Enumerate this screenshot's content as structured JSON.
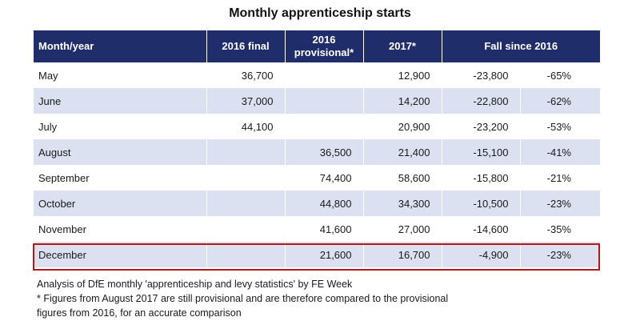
{
  "title": "Monthly apprenticeship starts",
  "headers": {
    "month": "Month/year",
    "final2016": "2016 final",
    "prov2016_line1": "2016",
    "prov2016_line2": "provisional*",
    "y2017": "2017*",
    "fall": "Fall since 2016"
  },
  "rows": [
    {
      "month": "May",
      "final2016": "36,700",
      "prov2016": "",
      "y2017": "12,900",
      "fall": "-23,800",
      "pct": "-65%"
    },
    {
      "month": "June",
      "final2016": "37,000",
      "prov2016": "",
      "y2017": "14,200",
      "fall": "-22,800",
      "pct": "-62%"
    },
    {
      "month": "July",
      "final2016": "44,100",
      "prov2016": "",
      "y2017": "20,900",
      "fall": "-23,200",
      "pct": "-53%"
    },
    {
      "month": "August",
      "final2016": "",
      "prov2016": "36,500",
      "y2017": "21,400",
      "fall": "-15,100",
      "pct": "-41%"
    },
    {
      "month": "September",
      "final2016": "",
      "prov2016": "74,400",
      "y2017": "58,600",
      "fall": "-15,800",
      "pct": "-21%"
    },
    {
      "month": "October",
      "final2016": "",
      "prov2016": "44,800",
      "y2017": "34,300",
      "fall": "-10,500",
      "pct": "-23%"
    },
    {
      "month": "November",
      "final2016": "",
      "prov2016": "41,600",
      "y2017": "27,000",
      "fall": "-14,600",
      "pct": "-35%"
    },
    {
      "month": "December",
      "final2016": "",
      "prov2016": "21,600",
      "y2017": "16,700",
      "fall": "-4,900",
      "pct": "-23%"
    }
  ],
  "notes": {
    "line1": "Analysis of DfE monthly 'apprenticeship and levy statistics' by FE Week",
    "line2": "* Figures from August 2017 are still provisional and are therefore compared to the provisional",
    "line3": "figures from 2016, for an accurate comparison"
  },
  "colors": {
    "header_bg": "#1f2d6b",
    "row_shade": "#dce1f2",
    "highlight_border": "#b21a1a"
  },
  "chart_data": {
    "type": "table",
    "title": "Monthly apprenticeship starts",
    "columns": [
      "Month/year",
      "2016 final",
      "2016 provisional*",
      "2017*",
      "Fall since 2016",
      "Fall since 2016 (%)"
    ],
    "rows": [
      [
        "May",
        36700,
        null,
        12900,
        -23800,
        -65
      ],
      [
        "June",
        37000,
        null,
        14200,
        -22800,
        -62
      ],
      [
        "July",
        44100,
        null,
        20900,
        -23200,
        -53
      ],
      [
        "August",
        null,
        36500,
        21400,
        -15100,
        -41
      ],
      [
        "September",
        null,
        74400,
        58600,
        -15800,
        -21
      ],
      [
        "October",
        null,
        44800,
        34300,
        -10500,
        -23
      ],
      [
        "November",
        null,
        41600,
        27000,
        -14600,
        -35
      ],
      [
        "December",
        null,
        21600,
        16700,
        -4900,
        -23
      ]
    ],
    "highlighted_row": "December"
  }
}
